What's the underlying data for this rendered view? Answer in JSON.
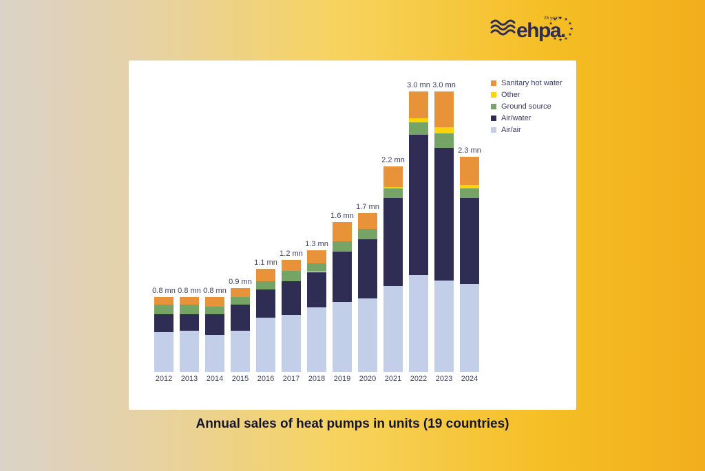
{
  "logo": {
    "brand": "ehpa.",
    "anniversary_label": "25 years",
    "color": "#2F2C52",
    "star_count": 10
  },
  "caption": "Annual sales of heat pumps in units (19 countries)",
  "chart_data": {
    "type": "bar",
    "stacked": true,
    "title": "Annual sales of heat pumps in units (19 countries)",
    "xlabel": "",
    "ylabel": "",
    "unit": "mn units",
    "ylim": [
      0,
      3.2
    ],
    "grid": false,
    "y_axis_shown": false,
    "legend_position": "top-right",
    "panel_color": "#FFFFFF",
    "categories": [
      "2012",
      "2013",
      "2014",
      "2015",
      "2016",
      "2017",
      "2018",
      "2019",
      "2020",
      "2021",
      "2022",
      "2023",
      "2024"
    ],
    "totals_label": [
      "0.8 mn",
      "0.8 mn",
      "0.8 mn",
      "0.9 mn",
      "1.1 mn",
      "1.2 mn",
      "1.3 mn",
      "1.6 mn",
      "1.7 mn",
      "2.2 mn",
      "3.0 mn",
      "3.0 mn",
      "2.3 mn"
    ],
    "totals": [
      0.8,
      0.8,
      0.8,
      0.9,
      1.1,
      1.2,
      1.3,
      1.6,
      1.7,
      2.2,
      3.0,
      3.0,
      2.3
    ],
    "series": [
      {
        "name": "Air/air",
        "color": "#C3CEE8",
        "values": [
          0.43,
          0.44,
          0.4,
          0.44,
          0.58,
          0.61,
          0.69,
          0.75,
          0.79,
          0.92,
          1.04,
          0.98,
          0.94
        ]
      },
      {
        "name": "Air/water",
        "color": "#302D54",
        "values": [
          0.19,
          0.18,
          0.22,
          0.28,
          0.3,
          0.36,
          0.38,
          0.54,
          0.63,
          0.94,
          1.5,
          1.42,
          0.92
        ]
      },
      {
        "name": "Ground source",
        "color": "#76A466",
        "values": [
          0.1,
          0.1,
          0.08,
          0.08,
          0.09,
          0.11,
          0.09,
          0.11,
          0.11,
          0.1,
          0.13,
          0.15,
          0.1
        ]
      },
      {
        "name": "Other",
        "color": "#FFD20A",
        "values": [
          0.0,
          0.0,
          0.0,
          0.0,
          0.0,
          0.0,
          0.0,
          0.0,
          0.0,
          0.02,
          0.04,
          0.07,
          0.04
        ]
      },
      {
        "name": "Sanitary hot water",
        "color": "#E8923A",
        "values": [
          0.08,
          0.08,
          0.1,
          0.1,
          0.13,
          0.12,
          0.14,
          0.2,
          0.17,
          0.22,
          0.29,
          0.38,
          0.3
        ]
      }
    ],
    "legend_order": [
      "Sanitary hot water",
      "Other",
      "Ground source",
      "Air/water",
      "Air/air"
    ]
  }
}
